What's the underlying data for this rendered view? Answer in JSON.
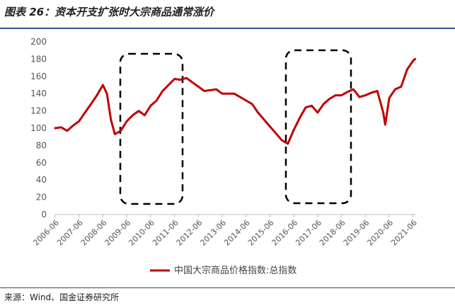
{
  "figure": {
    "title": "图表 26：资本开支扩张时大宗商品通常涨价",
    "source": "来源：Wind、国金证券研究所"
  },
  "chart_data": {
    "type": "line",
    "title": "",
    "xlabel": "",
    "ylabel": "",
    "ylim": [
      0,
      200
    ],
    "yticks": [
      0,
      20,
      40,
      60,
      80,
      100,
      120,
      140,
      160,
      180,
      200
    ],
    "xtick_labels": [
      "2006-06",
      "2007-06",
      "2008-06",
      "2009-06",
      "2010-06",
      "2011-06",
      "2012-06",
      "2013-06",
      "2014-06",
      "2015-06",
      "2016-06",
      "2017-06",
      "2018-06",
      "2019-06",
      "2020-06",
      "2021-06"
    ],
    "grid": false,
    "legend_position": "bottom",
    "series": [
      {
        "name": "中国大宗商品价格指数:总指数",
        "color": "#c00000",
        "x": [
          "2006-06",
          "2006-09",
          "2006-12",
          "2007-03",
          "2007-06",
          "2007-09",
          "2007-12",
          "2008-03",
          "2008-06",
          "2008-08",
          "2008-10",
          "2008-12",
          "2009-03",
          "2009-06",
          "2009-09",
          "2009-12",
          "2010-03",
          "2010-06",
          "2010-09",
          "2010-12",
          "2011-03",
          "2011-06",
          "2011-09",
          "2011-12",
          "2012-03",
          "2012-06",
          "2012-09",
          "2012-12",
          "2013-03",
          "2013-06",
          "2013-09",
          "2013-12",
          "2014-03",
          "2014-06",
          "2014-09",
          "2014-12",
          "2015-03",
          "2015-06",
          "2015-09",
          "2015-12",
          "2016-03",
          "2016-06",
          "2016-09",
          "2016-12",
          "2017-03",
          "2017-06",
          "2017-09",
          "2017-12",
          "2018-03",
          "2018-06",
          "2018-09",
          "2018-12",
          "2019-03",
          "2019-06",
          "2019-09",
          "2019-12",
          "2020-03",
          "2020-04",
          "2020-06",
          "2020-09",
          "2020-12",
          "2021-03",
          "2021-06",
          "2021-07"
        ],
        "values": [
          100,
          101,
          97,
          103,
          108,
          118,
          128,
          138,
          150,
          140,
          110,
          93,
          97,
          108,
          115,
          120,
          115,
          126,
          132,
          143,
          150,
          157,
          156,
          158,
          153,
          148,
          143,
          144,
          145,
          140,
          140,
          140,
          136,
          132,
          128,
          118,
          110,
          102,
          94,
          86,
          82,
          98,
          112,
          124,
          126,
          118,
          128,
          134,
          138,
          138,
          142,
          145,
          136,
          138,
          141,
          143,
          118,
          104,
          135,
          145,
          148,
          168,
          178,
          180
        ]
      }
    ]
  }
}
